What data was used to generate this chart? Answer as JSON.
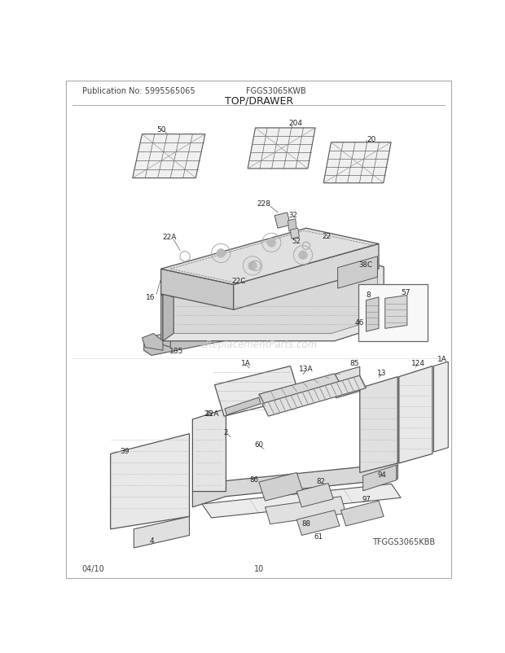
{
  "title": "TOP/DRAWER",
  "pub_no_label": "Publication No: 5995565065",
  "model_label": "FGGS3065KWB",
  "date_label": "04/10",
  "page_label": "10",
  "bottom_model": "TFGGS3065KBB",
  "watermark": "eReplacementParts.com",
  "bg_color": "#ffffff",
  "fig_width": 6.2,
  "fig_height": 8.03,
  "dpi": 100
}
